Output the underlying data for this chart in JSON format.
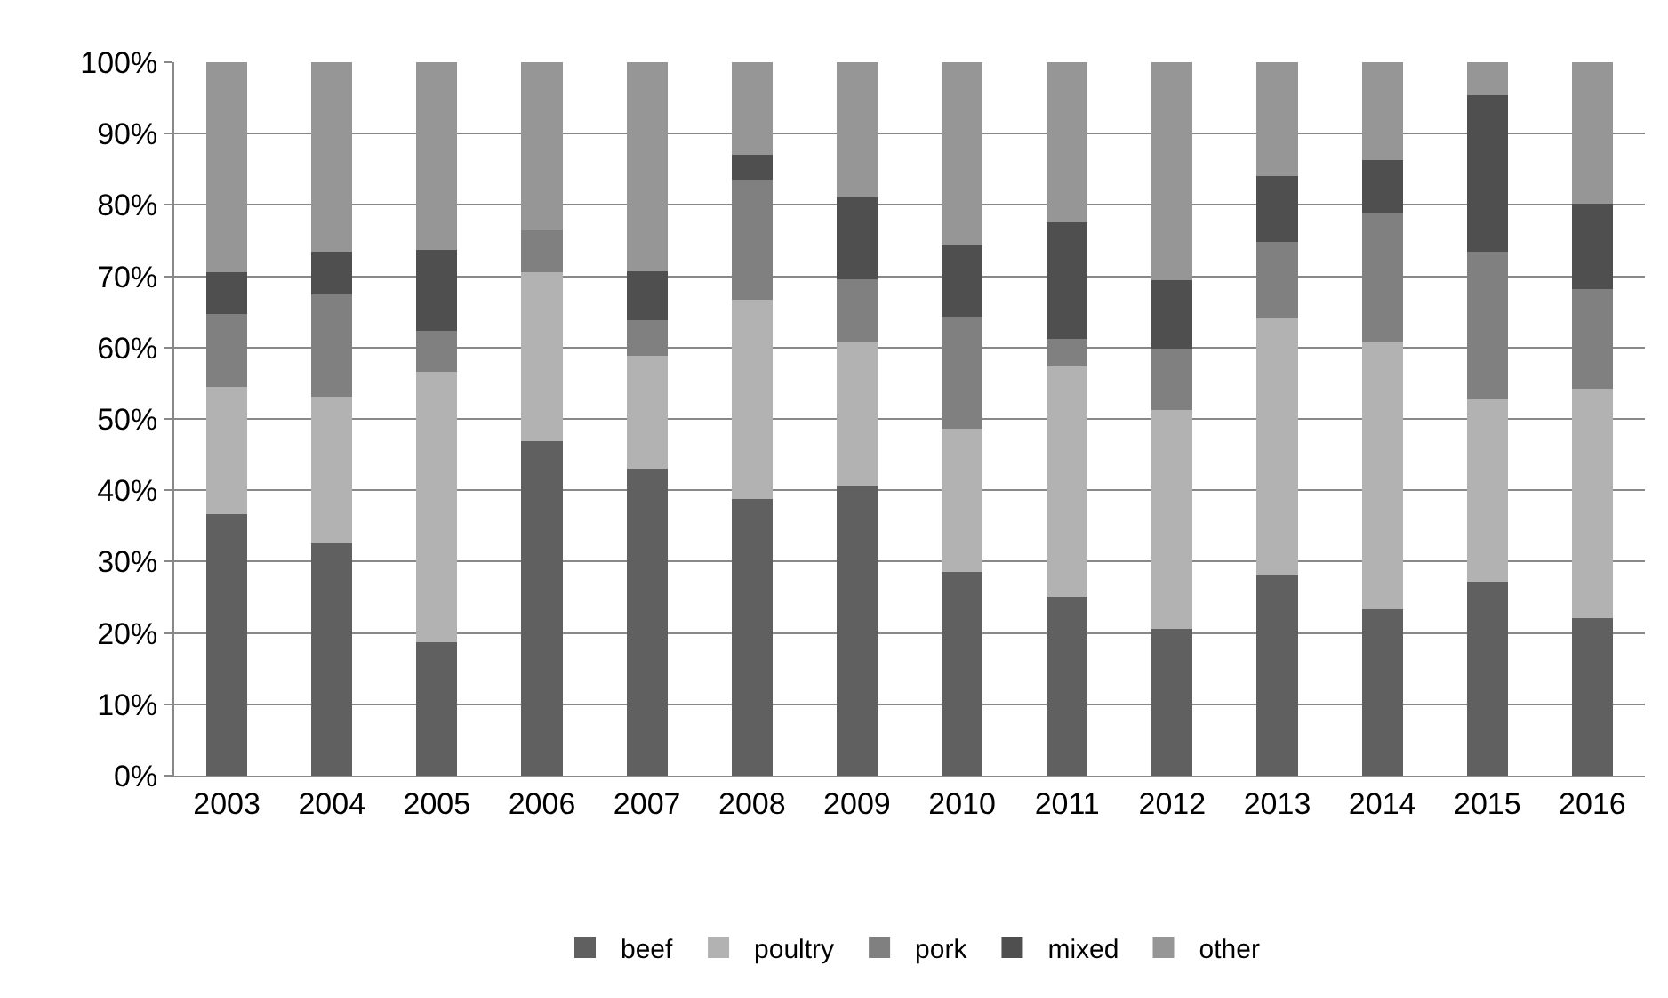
{
  "chart_data": {
    "type": "bar",
    "stacked": true,
    "categories": [
      "2003",
      "2004",
      "2005",
      "2006",
      "2007",
      "2008",
      "2009",
      "2010",
      "2011",
      "2012",
      "2013",
      "2014",
      "2015",
      "2016"
    ],
    "series": [
      {
        "name": "beef",
        "color": "#606060",
        "values": [
          36.6,
          32.5,
          18.7,
          46.9,
          43.0,
          38.8,
          40.6,
          28.5,
          25.1,
          20.6,
          28.0,
          23.3,
          27.2,
          22.1
        ]
      },
      {
        "name": "poultry",
        "color": "#b2b2b2",
        "values": [
          17.9,
          20.6,
          37.9,
          23.7,
          15.8,
          27.9,
          20.3,
          20.1,
          32.3,
          30.7,
          36.1,
          37.4,
          25.5,
          32.1
        ]
      },
      {
        "name": "pork",
        "color": "#808080",
        "values": [
          10.2,
          14.3,
          5.7,
          5.8,
          5.1,
          16.8,
          8.7,
          15.8,
          3.8,
          8.5,
          10.7,
          18.1,
          20.7,
          14.0
        ]
      },
      {
        "name": "mixed",
        "color": "#4f4f4f",
        "values": [
          5.9,
          6.0,
          11.4,
          0,
          6.8,
          3.5,
          11.5,
          9.9,
          16.4,
          9.7,
          9.2,
          7.5,
          22.0,
          12.0
        ]
      },
      {
        "name": "other",
        "color": "#969696",
        "values": [
          29.4,
          26.6,
          26.3,
          23.6,
          29.3,
          13.0,
          18.9,
          25.7,
          22.4,
          30.5,
          16.0,
          13.7,
          4.6,
          19.8
        ]
      }
    ],
    "ylim": [
      0,
      100
    ],
    "yticks": [
      {
        "value": 0,
        "label": "0%"
      },
      {
        "value": 10,
        "label": "10%"
      },
      {
        "value": 20,
        "label": "20%"
      },
      {
        "value": 30,
        "label": "30%"
      },
      {
        "value": 40,
        "label": "40%"
      },
      {
        "value": 50,
        "label": "50%"
      },
      {
        "value": 60,
        "label": "60%"
      },
      {
        "value": 70,
        "label": "70%"
      },
      {
        "value": 80,
        "label": "80%"
      },
      {
        "value": 90,
        "label": "90%"
      },
      {
        "value": 100,
        "label": "100%"
      }
    ],
    "grid": "y",
    "legend": "bottom"
  }
}
